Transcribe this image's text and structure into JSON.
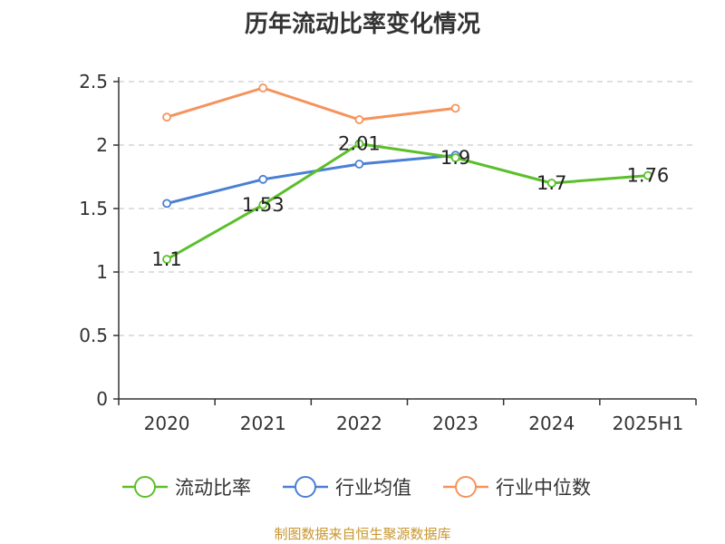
{
  "chart_data": {
    "type": "line",
    "title": "历年流动比率变化情况",
    "categories": [
      "2020",
      "2021",
      "2022",
      "2023",
      "2024",
      "2025H1"
    ],
    "ylim": [
      0,
      2.5
    ],
    "yticks": [
      "0",
      "0.5",
      "1",
      "1.5",
      "2",
      "2.5"
    ],
    "grid": true,
    "legend_position": "bottom",
    "series": [
      {
        "name": "流动比率",
        "color": "#5cbf2a",
        "values": [
          1.1,
          1.53,
          2.01,
          1.9,
          1.7,
          1.76
        ],
        "labels": [
          "1.1",
          "1.53",
          "2.01",
          "1.9",
          "1.7",
          "1.76"
        ]
      },
      {
        "name": "行业均值",
        "color": "#4a7fd4",
        "values": [
          1.54,
          1.73,
          1.85,
          1.92,
          null,
          null
        ]
      },
      {
        "name": "行业中位数",
        "color": "#f5935d",
        "values": [
          2.22,
          2.45,
          2.2,
          2.29,
          null,
          null
        ]
      }
    ]
  },
  "source_text": "制图数据来自恒生聚源数据库"
}
